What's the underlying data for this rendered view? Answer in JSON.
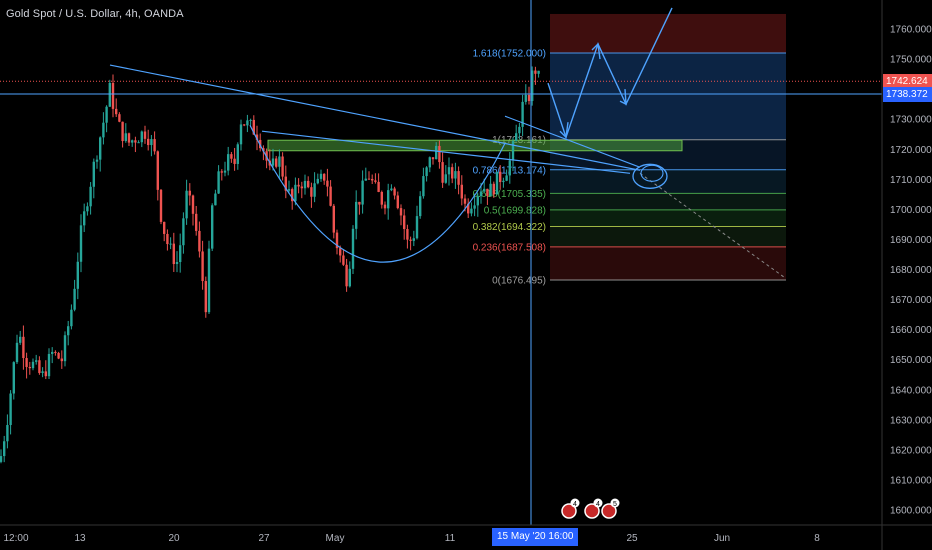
{
  "title": "Gold Spot / U.S. Dollar, 4h, OANDA",
  "colors": {
    "bg": "#000000",
    "up": "#26a69a",
    "down": "#ef5350",
    "drawing": "#4fa3ff",
    "grid": "#1a1a1a"
  },
  "price_labels": {
    "current": "1742.624",
    "crosshair": "1738.372"
  },
  "crosshair_date": "15 May '20   16:00",
  "chart_data": {
    "type": "candlestick",
    "title": "Gold Spot / U.S. Dollar, 4h, OANDA",
    "ylim": [
      1595,
      1765
    ],
    "y_ticks": [
      1600,
      1610,
      1620,
      1630,
      1640,
      1650,
      1660,
      1670,
      1680,
      1690,
      1700,
      1710,
      1720,
      1730,
      1740,
      1750,
      1760
    ],
    "x_ticks": [
      "12:00",
      "13",
      "20",
      "27",
      "May",
      "11",
      "25",
      "Jun",
      "8"
    ],
    "close_path": [
      [
        0,
        1616
      ],
      [
        8,
        1632
      ],
      [
        18,
        1660
      ],
      [
        26,
        1650
      ],
      [
        34,
        1648
      ],
      [
        42,
        1644
      ],
      [
        52,
        1652
      ],
      [
        62,
        1650
      ],
      [
        72,
        1668
      ],
      [
        80,
        1690
      ],
      [
        88,
        1705
      ],
      [
        96,
        1718
      ],
      [
        104,
        1730
      ],
      [
        110,
        1740
      ],
      [
        118,
        1728
      ],
      [
        128,
        1722
      ],
      [
        136,
        1724
      ],
      [
        146,
        1726
      ],
      [
        154,
        1720
      ],
      [
        160,
        1700
      ],
      [
        166,
        1690
      ],
      [
        172,
        1685
      ],
      [
        178,
        1682
      ],
      [
        186,
        1705
      ],
      [
        194,
        1698
      ],
      [
        202,
        1678
      ],
      [
        206,
        1668
      ],
      [
        212,
        1700
      ],
      [
        220,
        1712
      ],
      [
        228,
        1716
      ],
      [
        234,
        1714
      ],
      [
        240,
        1730
      ],
      [
        248,
        1728
      ],
      [
        256,
        1726
      ],
      [
        262,
        1722
      ],
      [
        270,
        1712
      ],
      [
        278,
        1718
      ],
      [
        286,
        1708
      ],
      [
        292,
        1702
      ],
      [
        300,
        1710
      ],
      [
        310,
        1706
      ],
      [
        318,
        1708
      ],
      [
        326,
        1712
      ],
      [
        334,
        1692
      ],
      [
        342,
        1682
      ],
      [
        348,
        1676
      ],
      [
        354,
        1700
      ],
      [
        360,
        1704
      ],
      [
        368,
        1712
      ],
      [
        376,
        1706
      ],
      [
        384,
        1702
      ],
      [
        392,
        1710
      ],
      [
        400,
        1700
      ],
      [
        408,
        1688
      ],
      [
        414,
        1692
      ],
      [
        422,
        1708
      ],
      [
        430,
        1716
      ],
      [
        436,
        1720
      ],
      [
        444,
        1710
      ],
      [
        452,
        1712
      ],
      [
        460,
        1708
      ],
      [
        466,
        1700
      ],
      [
        474,
        1704
      ],
      [
        482,
        1708
      ],
      [
        490,
        1706
      ],
      [
        498,
        1710
      ],
      [
        504,
        1712
      ],
      [
        510,
        1716
      ],
      [
        516,
        1724
      ],
      [
        522,
        1734
      ],
      [
        528,
        1736
      ],
      [
        534,
        1748
      ],
      [
        540,
        1742
      ]
    ],
    "fibonacci": [
      {
        "label": "1.618(1752.000)",
        "price": 1752.0
      },
      {
        "label": "1(1723.161)",
        "price": 1723.161
      },
      {
        "label": "0.786(1713.174)",
        "price": 1713.174
      },
      {
        "label": "0.618(1705.335)",
        "price": 1705.335
      },
      {
        "label": "0.5(1699.828)",
        "price": 1699.828
      },
      {
        "label": "0.382(1694.322)",
        "price": 1694.322
      },
      {
        "label": "0.236(1687.508)",
        "price": 1687.508
      },
      {
        "label": "0(1676.495)",
        "price": 1676.495
      }
    ],
    "grid": false,
    "current_price": 1742.624,
    "crosshair_price": 1738.372
  }
}
